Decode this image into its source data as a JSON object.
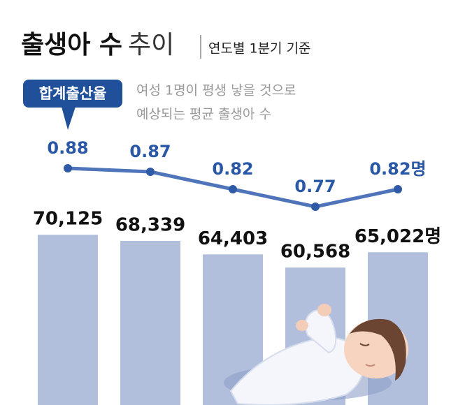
{
  "chart_data": {
    "type": "bar",
    "title": "출생아 수",
    "title_light": "추이",
    "subtitle": "연도별 1분기 기준",
    "categories": [
      null,
      null,
      null,
      null,
      null
    ],
    "ylim": [
      20500,
      72000
    ],
    "y2lim": [
      0.7,
      0.9
    ],
    "series": [
      {
        "type": "bar",
        "color": "#b1bfdd",
        "values": [
          70125,
          68339,
          64403,
          60568,
          65022
        ],
        "value_labels": [
          "70,125",
          "68,339",
          "64,403",
          "60,568",
          "65,022명"
        ]
      },
      {
        "type": "line",
        "axis": "y2",
        "name": "합계출산율",
        "color": "#4f74b9",
        "marker_color": "#2f5aa6",
        "description": [
          "여성 1명이 평생 낳을 것으로",
          "예상되는 평균 출생아 수"
        ],
        "values": [
          0.88,
          0.87,
          0.82,
          0.77,
          0.82
        ],
        "value_labels": [
          "0.88",
          "0.87",
          "0.82",
          "0.77",
          "0.82명"
        ]
      }
    ]
  }
}
